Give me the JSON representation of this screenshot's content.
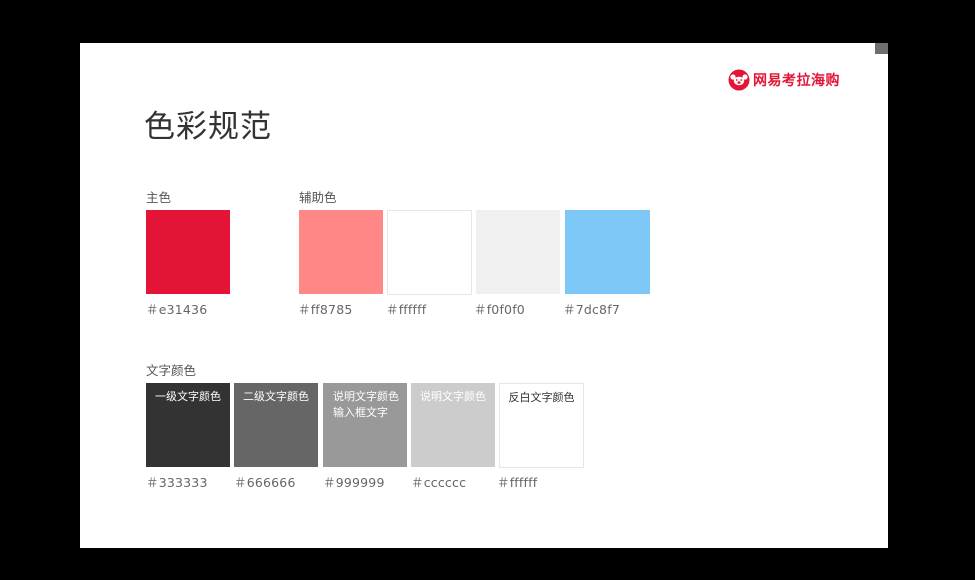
{
  "brand": {
    "name": "网易考拉海购",
    "accent": "#e31436"
  },
  "page": {
    "title": "色彩规范"
  },
  "primary": {
    "title": "主色",
    "swatches": [
      {
        "color": "#e31436",
        "code": "＃e31436"
      }
    ]
  },
  "secondary": {
    "title": "辅助色",
    "swatches": [
      {
        "color": "#ff8785",
        "code": "＃ff8785"
      },
      {
        "color": "#ffffff",
        "code": "＃ffffff"
      },
      {
        "color": "#f0f0f0",
        "code": "＃f0f0f0"
      },
      {
        "color": "#7dc8f7",
        "code": "＃7dc8f7"
      }
    ]
  },
  "text_colors": {
    "title": "文字颜色",
    "swatches": [
      {
        "color": "#333333",
        "label": "一级文字颜色",
        "label_color": "#ffffff",
        "code": "＃333333"
      },
      {
        "color": "#666666",
        "label": "二级文字颜色",
        "label_color": "#ffffff",
        "code": "＃666666"
      },
      {
        "color": "#999999",
        "label": "说明文字颜色\n输入框文字",
        "label_color": "#ffffff",
        "code": "＃999999"
      },
      {
        "color": "#cccccc",
        "label": "说明文字颜色",
        "label_color": "#ffffff",
        "code": "＃cccccc"
      },
      {
        "color": "#ffffff",
        "label": "反白文字颜色",
        "label_color": "#333333",
        "code": "＃ffffff"
      }
    ]
  }
}
